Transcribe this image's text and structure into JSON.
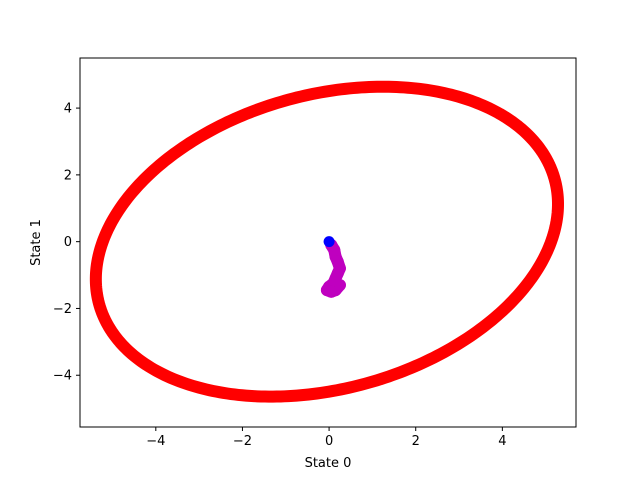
{
  "chart_data": {
    "type": "scatter",
    "xlabel": "State 0",
    "ylabel": "State 1",
    "xlim": [
      -5.75,
      5.7
    ],
    "ylim": [
      -5.55,
      5.5
    ],
    "x_ticks": [
      -4,
      -2,
      0,
      2,
      4
    ],
    "y_ticks": [
      -4,
      -2,
      0,
      2,
      4
    ],
    "x_tick_labels": [
      "−4",
      "−2",
      "0",
      "2",
      "4"
    ],
    "y_tick_labels": [
      "−4",
      "−2",
      "0",
      "2",
      "4"
    ],
    "grid": false,
    "series": [
      {
        "kind": "ellipse-trajectory",
        "color": "#ff0000",
        "center": [
          -0.05,
          0.0
        ],
        "semi_major": 5.65,
        "semi_minor": 4.25,
        "rotation_deg": 30
      },
      {
        "kind": "path",
        "color": "#bf00bf",
        "points": [
          [
            0.05,
            -0.1
          ],
          [
            0.12,
            -0.25
          ],
          [
            0.15,
            -0.45
          ],
          [
            0.2,
            -0.6
          ],
          [
            0.25,
            -0.8
          ],
          [
            0.2,
            -0.95
          ],
          [
            0.15,
            -1.1
          ],
          [
            0.1,
            -1.25
          ],
          [
            0.0,
            -1.35
          ],
          [
            -0.05,
            -1.45
          ],
          [
            0.05,
            -1.5
          ],
          [
            0.15,
            -1.45
          ],
          [
            0.25,
            -1.3
          ]
        ]
      },
      {
        "kind": "point",
        "color": "#0000ff",
        "points": [
          [
            0.0,
            0.0
          ]
        ]
      }
    ]
  }
}
